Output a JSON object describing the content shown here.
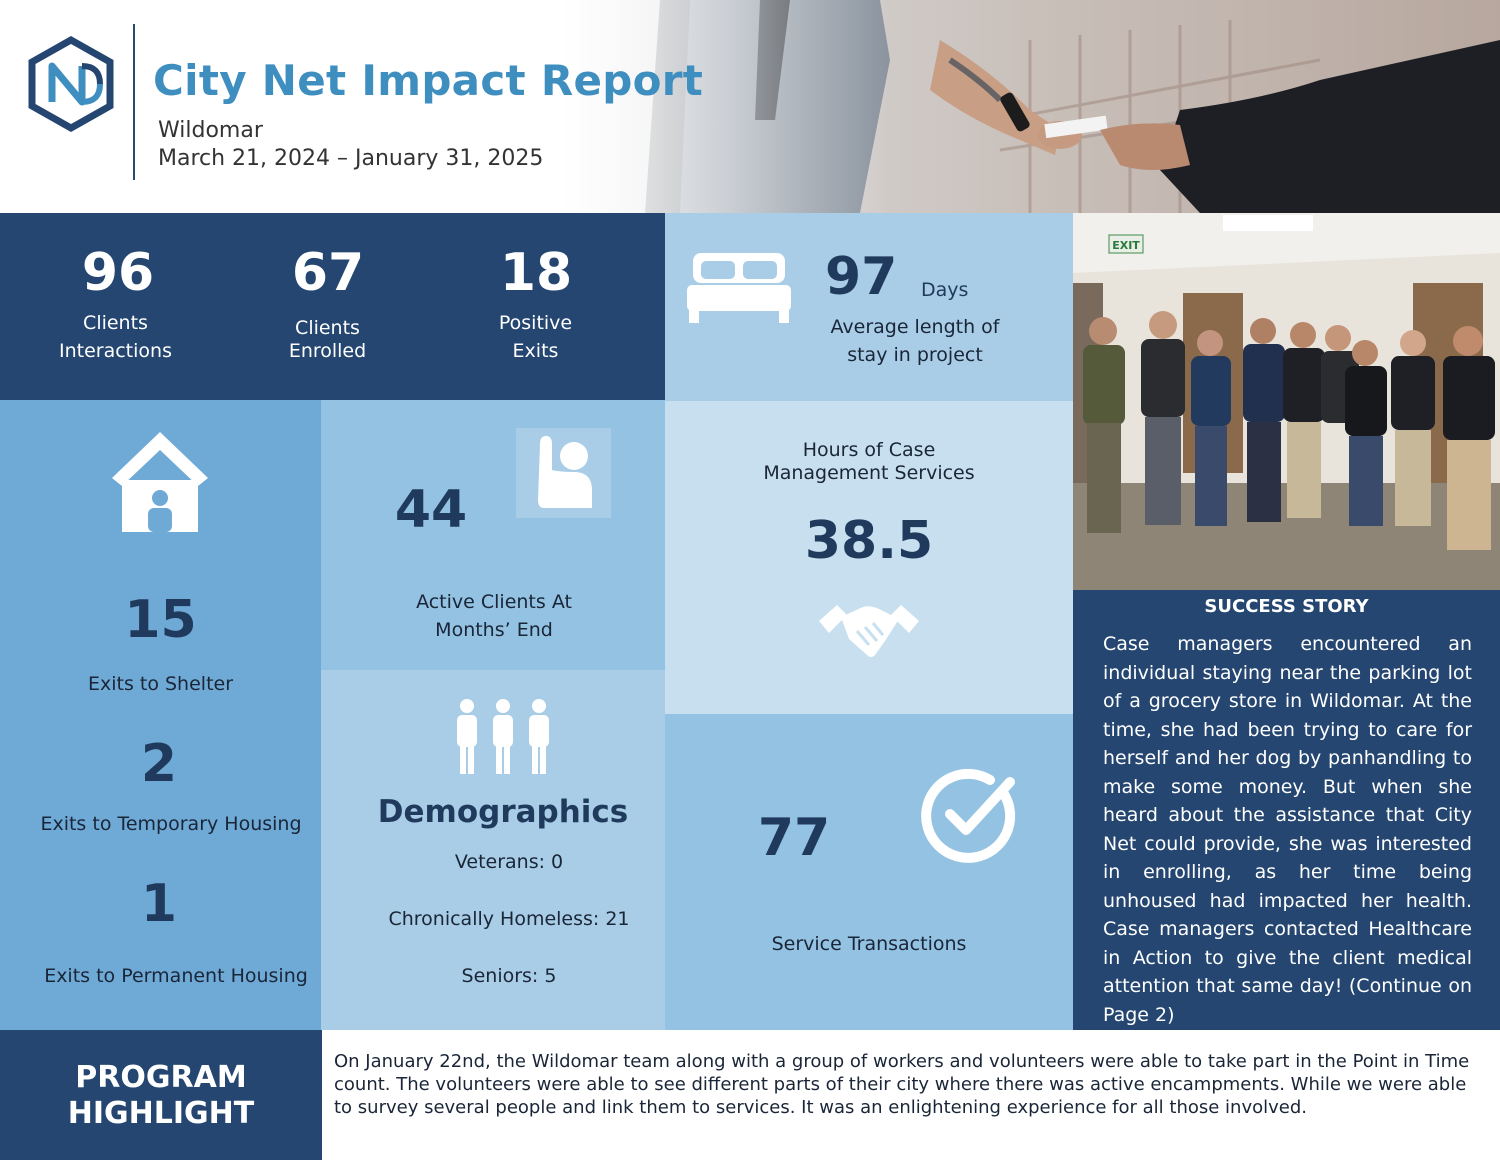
{
  "header": {
    "title": "City Net Impact Report",
    "city": "Wildomar",
    "dates": "March 21, 2024 – January 31, 2025",
    "logo_icon": "city-net-hexagon-logo"
  },
  "stats_top": [
    {
      "value": "96",
      "label_line1": "Clients",
      "label_line2": "Interactions"
    },
    {
      "value": "67",
      "label_line1": "Clients",
      "label_line2": "Enrolled"
    },
    {
      "value": "18",
      "label_line1": "Positive",
      "label_line2": "Exits"
    }
  ],
  "stay": {
    "value": "97",
    "unit": "Days",
    "label_line1": "Average length of",
    "label_line2": "stay in project",
    "icon": "bed-icon"
  },
  "exits": {
    "icon": "house-person-icon",
    "shelter_value": "15",
    "shelter_label": "Exits to Shelter",
    "temporary_value": "2",
    "temporary_label": "Exits to Temporary Housing",
    "permanent_value": "1",
    "permanent_label": "Exits to Permanent Housing"
  },
  "active": {
    "value": "44",
    "label_line1": "Active Clients At",
    "label_line2": "Months’ End",
    "icon": "raised-hand-person-icon"
  },
  "demographics": {
    "title": "Demographics",
    "icon": "people-group-icon",
    "veterans": "Veterans: 0",
    "chronic": "Chronically Homeless: 21",
    "seniors": "Seniors: 5"
  },
  "hours": {
    "label_line1": "Hours of Case",
    "label_line2": "Management Services",
    "value": "38.5",
    "icon": "handshake-icon"
  },
  "service": {
    "value": "77",
    "label": "Service Transactions",
    "icon": "checkmark-circle-icon"
  },
  "story": {
    "title": "SUCCESS STORY",
    "body": "Case managers encountered an individual staying near the parking lot of a grocery store in Wildomar. At the time, she had been trying to care for herself and her dog by panhandling to make some money. But when she heard about the assistance that City Net could provide, she was interested in enrolling, as her time being unhoused had impacted her health. Case managers contacted Healthcare in Action to give the client medical attention that same day! (Continue on Page 2)"
  },
  "highlight": {
    "label_line1": "PROGRAM",
    "label_line2": "HIGHLIGHT",
    "text": "On January 22nd, the Wildomar team along with a group of workers and volunteers were able to take part in the Point in Time count. The volunteers were able to see different parts of their city where there was active encampments. While we were able to survey several people and link them to services. It was an enlightening experience for all those involved."
  },
  "photos": {
    "exit_sign": "EXIT"
  },
  "colors": {
    "navy": "#244670",
    "mid_blue": "#6faad6",
    "light_blue": "#93c2e2",
    "pale_blue": "#a9cde6",
    "palest_blue": "#c7dfef",
    "title_blue": "#3e8ec0"
  }
}
